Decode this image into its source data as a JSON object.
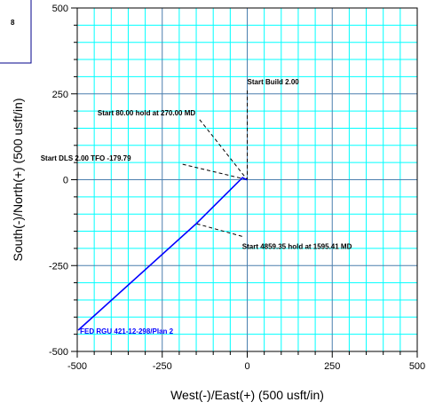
{
  "colors": {
    "minor_grid": "#00ffff",
    "major_grid": "#4b7fae",
    "wellpath": "#0000ff",
    "legend_border": "#00008b",
    "frame": "#000000",
    "leader": "#000000"
  },
  "legend_box": {
    "text": "8"
  },
  "chart_data": {
    "type": "line",
    "title": "",
    "xlabel": "West(-)/East(+) (500 usft/in)",
    "ylabel": "South(-)/North(+) (500 usft/in)",
    "xlim": [
      -500,
      500
    ],
    "ylim": [
      -500,
      500
    ],
    "grid": true,
    "x_ticks": [
      {
        "value": -500,
        "label": "-500"
      },
      {
        "value": -250,
        "label": "-250"
      },
      {
        "value": 0,
        "label": "0"
      },
      {
        "value": 250,
        "label": "250"
      },
      {
        "value": 500,
        "label": "500"
      }
    ],
    "y_ticks": [
      {
        "value": 500,
        "label": "500"
      },
      {
        "value": 250,
        "label": "250"
      },
      {
        "value": 0,
        "label": "0"
      },
      {
        "value": -250,
        "label": "-250"
      },
      {
        "value": -500,
        "label": "-500"
      }
    ],
    "series": [
      {
        "name": "FED RGU 421-12-298/Plan 2",
        "x": [
          0,
          0,
          -2,
          -6,
          -10,
          -14,
          -150,
          -497
        ],
        "y": [
          0,
          0,
          0,
          2,
          4,
          6,
          -128,
          -438
        ]
      }
    ],
    "annotations": [
      {
        "text": "Start Build 2.00",
        "x": 0,
        "y": 0,
        "leader_from": [
          0,
          260
        ]
      },
      {
        "text": "Start 80.00 hold at 270.00 MD",
        "x": 0,
        "y": 0,
        "leader_from": [
          -140,
          175
        ]
      },
      {
        "text": "Start DLS 2.00 TFO -179.79",
        "x": 0,
        "y": 0,
        "leader_from": [
          -190,
          45
        ]
      },
      {
        "text": "Start 4859.35 hold at 1595.41 MD",
        "x": -150,
        "y": -128,
        "leader_from": [
          -15,
          -165
        ]
      }
    ],
    "well_label": {
      "text": "FED RGU 421-12-298/Plan 2",
      "x": -497,
      "y": -438
    }
  }
}
